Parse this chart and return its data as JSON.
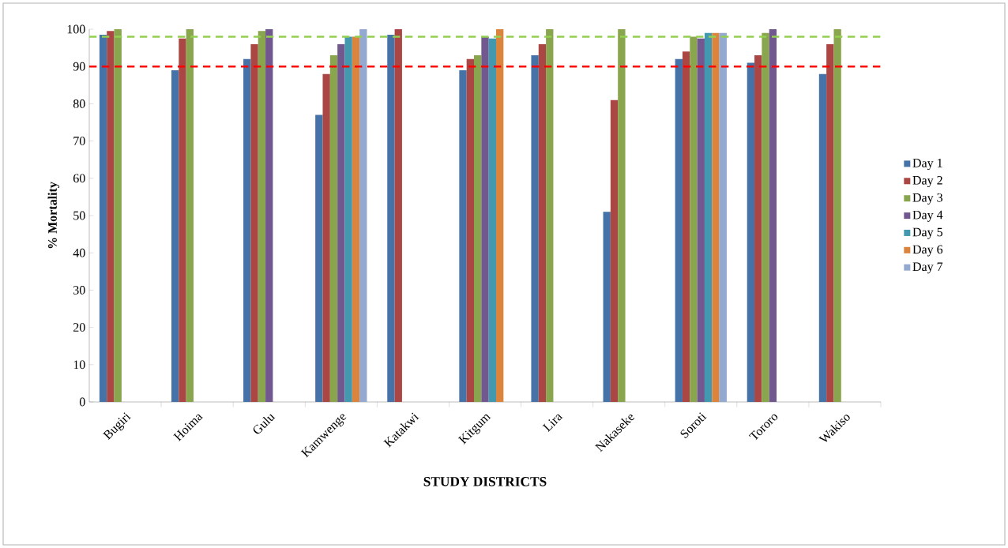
{
  "chart_data": {
    "type": "bar",
    "xlabel": "STUDY DISTRICTS",
    "ylabel": "% Mortality",
    "categories": [
      "Bugiri",
      "Hoima",
      "Gulu",
      "Kamwenge",
      "Katakwi",
      "Kitgum",
      "Lira",
      "Nakaseke",
      "Soroti",
      "Tororo",
      "Wakiso"
    ],
    "series": [
      {
        "name": "Day 1",
        "color": "#4572a7",
        "values": [
          98.5,
          89,
          92,
          77,
          98.5,
          89,
          93,
          51,
          92,
          91,
          88
        ]
      },
      {
        "name": "Day 2",
        "color": "#aa4643",
        "values": [
          99.5,
          97.5,
          96,
          88,
          100,
          92,
          96,
          81,
          94,
          93,
          96
        ]
      },
      {
        "name": "Day 3",
        "color": "#89a54e",
        "values": [
          100,
          100,
          99.5,
          93,
          null,
          93,
          100,
          100,
          98,
          99,
          100
        ]
      },
      {
        "name": "Day 4",
        "color": "#71588f",
        "values": [
          null,
          null,
          100,
          96,
          null,
          98,
          null,
          null,
          97.5,
          100,
          null
        ]
      },
      {
        "name": "Day 5",
        "color": "#4198af",
        "values": [
          null,
          null,
          null,
          98,
          null,
          97.5,
          null,
          null,
          99,
          null,
          null
        ]
      },
      {
        "name": "Day 6",
        "color": "#db843d",
        "values": [
          null,
          null,
          null,
          98,
          null,
          100,
          null,
          null,
          99,
          null,
          null
        ]
      },
      {
        "name": "Day 7",
        "color": "#93a9cf",
        "values": [
          null,
          null,
          null,
          100,
          null,
          null,
          null,
          null,
          99,
          null,
          null
        ]
      }
    ],
    "ylim": [
      0,
      100
    ],
    "yticks": [
      0,
      10,
      20,
      30,
      40,
      50,
      60,
      70,
      80,
      90,
      100
    ],
    "ref_lines": [
      {
        "axis": "y",
        "value": 98,
        "color": "#92d050",
        "line_style": "dashed"
      },
      {
        "axis": "y",
        "value": 90,
        "color": "#ff0000",
        "line_style": "dashed"
      }
    ],
    "legend": "right",
    "grid": false
  }
}
